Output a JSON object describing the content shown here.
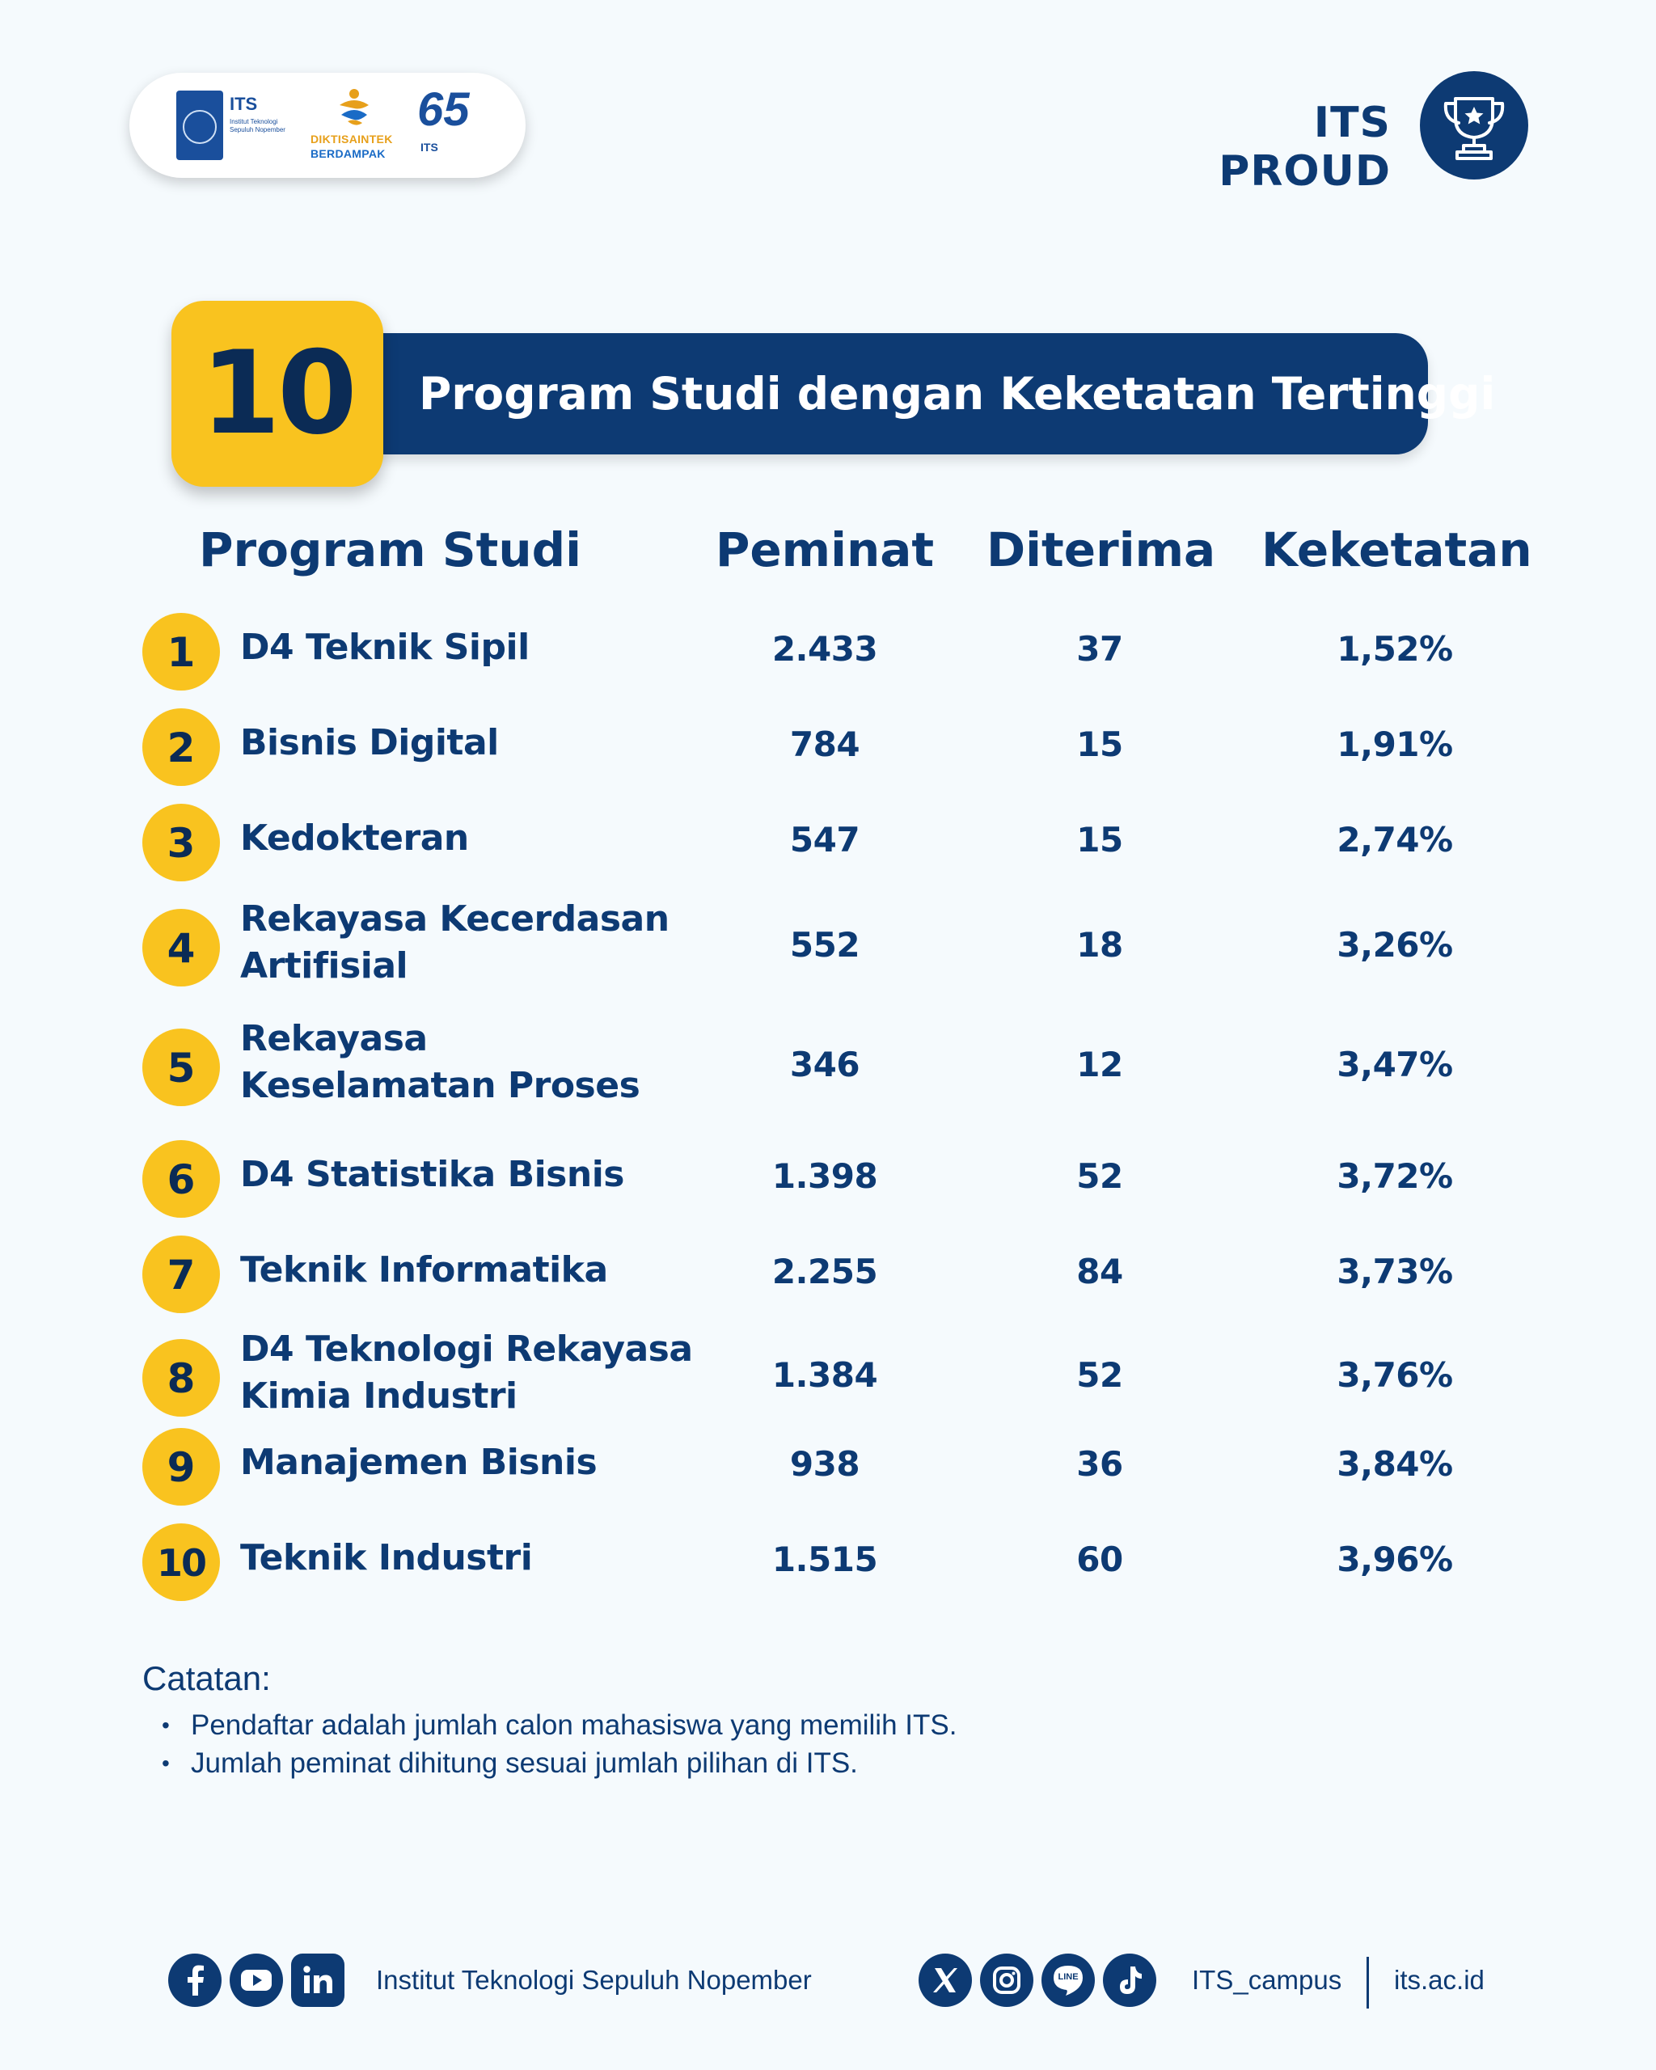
{
  "header": {
    "logos": {
      "its_name": "ITS",
      "its_sub": "Institut Teknologi Sepuluh Nopember",
      "dikti_line1": "DIKTISAINTEK",
      "dikti_line2": "BERDAMPAK",
      "anniv_number": "65",
      "anniv_sub": "ITS"
    },
    "tagline": "ITS PROUD",
    "trophy_icon": "trophy-icon"
  },
  "title": {
    "number": "10",
    "text": "Program Studi dengan Keketatan Tertinggi"
  },
  "table": {
    "headers": {
      "program": "Program Studi",
      "peminat": "Peminat",
      "diterima": "Diterima",
      "keketatan": "Keketatan"
    },
    "rows": [
      {
        "rank": "1",
        "program": "D4 Teknik Sipil",
        "peminat": "2.433",
        "diterima": "37",
        "keketatan": "1,52%"
      },
      {
        "rank": "2",
        "program": "Bisnis Digital",
        "peminat": "784",
        "diterima": "15",
        "keketatan": "1,91%"
      },
      {
        "rank": "3",
        "program": "Kedokteran",
        "peminat": "547",
        "diterima": "15",
        "keketatan": "2,74%"
      },
      {
        "rank": "4",
        "program": "Rekayasa Kecerdasan Artifisial",
        "peminat": "552",
        "diterima": "18",
        "keketatan": "3,26%"
      },
      {
        "rank": "5",
        "program": "Rekayasa Keselamatan Proses",
        "peminat": "346",
        "diterima": "12",
        "keketatan": "3,47%"
      },
      {
        "rank": "6",
        "program": "D4 Statistika Bisnis",
        "peminat": "1.398",
        "diterima": "52",
        "keketatan": "3,72%"
      },
      {
        "rank": "7",
        "program": "Teknik Informatika",
        "peminat": "2.255",
        "diterima": "84",
        "keketatan": "3,73%"
      },
      {
        "rank": "8",
        "program": "D4 Teknologi Rekayasa Kimia Industri",
        "peminat": "1.384",
        "diterima": "52",
        "keketatan": "3,76%"
      },
      {
        "rank": "9",
        "program": "Manajemen Bisnis",
        "peminat": "938",
        "diterima": "36",
        "keketatan": "3,84%"
      },
      {
        "rank": "10",
        "program": "Teknik Industri",
        "peminat": "1.515",
        "diterima": "60",
        "keketatan": "3,96%"
      }
    ]
  },
  "notes": {
    "title": "Catatan:",
    "items": [
      "Pendaftar adalah jumlah calon mahasiswa yang memilih ITS.",
      "Jumlah peminat dihitung sesuai jumlah pilihan di ITS."
    ]
  },
  "footer": {
    "institution": "Institut Teknologi Sepuluh Nopember",
    "handle": "ITS_campus",
    "website": "its.ac.id",
    "icons_left": [
      "facebook-icon",
      "youtube-icon",
      "linkedin-icon"
    ],
    "icons_right": [
      "x-icon",
      "instagram-icon",
      "line-icon",
      "tiktok-icon"
    ],
    "line_label": "LINE"
  },
  "colors": {
    "navy": "#0d3a73",
    "yellow": "#f9c31f",
    "background": "#f5fafd"
  }
}
